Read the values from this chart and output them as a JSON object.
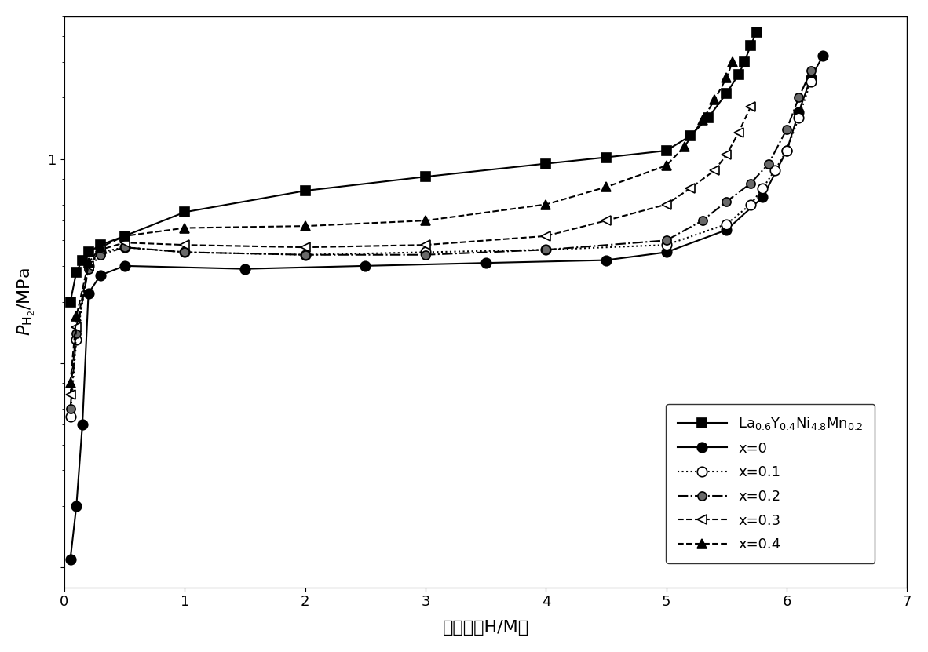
{
  "xlabel_cn": "原子比（H/M）",
  "ylabel": "$P_{\\mathrm{H_2}}$/MPa",
  "xlim": [
    0,
    7
  ],
  "ylim_log": [
    0.008,
    5
  ],
  "xticks": [
    0,
    1,
    2,
    3,
    4,
    5,
    6,
    7
  ],
  "series": [
    {
      "label_text": "La",
      "label": "La$_{0.6}$Y$_{0.4}$Ni$_{4.8}$Mn$_{0.2}$",
      "color": "black",
      "linestyle": "-",
      "marker": "s",
      "markersize": 8,
      "markerfacecolor": "black",
      "x": [
        0.05,
        0.1,
        0.15,
        0.2,
        0.3,
        0.5,
        1.0,
        2.0,
        3.0,
        4.0,
        4.5,
        5.0,
        5.2,
        5.35,
        5.5,
        5.6,
        5.65,
        5.7,
        5.75
      ],
      "y": [
        0.2,
        0.28,
        0.32,
        0.35,
        0.38,
        0.42,
        0.55,
        0.7,
        0.82,
        0.95,
        1.02,
        1.1,
        1.3,
        1.6,
        2.1,
        2.6,
        3.0,
        3.6,
        4.2
      ]
    },
    {
      "label": "x=0",
      "color": "black",
      "linestyle": "-",
      "marker": "o",
      "markersize": 9,
      "markerfacecolor": "black",
      "x": [
        0.05,
        0.1,
        0.15,
        0.2,
        0.3,
        0.5,
        1.5,
        2.5,
        3.5,
        4.5,
        5.0,
        5.5,
        5.8,
        6.0,
        6.1,
        6.2,
        6.3
      ],
      "y": [
        0.011,
        0.02,
        0.05,
        0.22,
        0.27,
        0.3,
        0.29,
        0.3,
        0.31,
        0.32,
        0.35,
        0.45,
        0.65,
        1.1,
        1.7,
        2.5,
        3.2
      ]
    },
    {
      "label": "x=0.1",
      "color": "black",
      "linestyle": ":",
      "marker": "o",
      "markersize": 9,
      "markerfacecolor": "white",
      "x": [
        0.05,
        0.1,
        0.2,
        0.3,
        0.5,
        1.0,
        2.0,
        3.0,
        4.0,
        5.0,
        5.5,
        5.7,
        5.8,
        5.9,
        6.0,
        6.1,
        6.2
      ],
      "y": [
        0.055,
        0.13,
        0.3,
        0.35,
        0.37,
        0.35,
        0.34,
        0.35,
        0.36,
        0.38,
        0.48,
        0.6,
        0.72,
        0.88,
        1.1,
        1.6,
        2.4
      ]
    },
    {
      "label": "x=0.2",
      "color": "black",
      "linestyle": "-.",
      "marker": "o",
      "markersize": 8,
      "markerfacecolor": "dimgray",
      "x": [
        0.05,
        0.1,
        0.2,
        0.3,
        0.5,
        1.0,
        2.0,
        3.0,
        4.0,
        5.0,
        5.3,
        5.5,
        5.7,
        5.85,
        6.0,
        6.1,
        6.2
      ],
      "y": [
        0.06,
        0.14,
        0.29,
        0.34,
        0.37,
        0.35,
        0.34,
        0.34,
        0.36,
        0.4,
        0.5,
        0.62,
        0.76,
        0.95,
        1.4,
        2.0,
        2.7
      ]
    },
    {
      "label": "x=0.3",
      "color": "black",
      "linestyle": "--",
      "marker": "<",
      "markersize": 8,
      "markerfacecolor": "white",
      "x": [
        0.05,
        0.1,
        0.2,
        0.3,
        0.5,
        1.0,
        2.0,
        3.0,
        4.0,
        4.5,
        5.0,
        5.2,
        5.4,
        5.5,
        5.6,
        5.7
      ],
      "y": [
        0.07,
        0.15,
        0.3,
        0.36,
        0.39,
        0.38,
        0.37,
        0.38,
        0.42,
        0.5,
        0.6,
        0.72,
        0.88,
        1.05,
        1.35,
        1.8
      ]
    },
    {
      "label": "x=0.4",
      "color": "black",
      "linestyle": "--",
      "marker": "^",
      "markersize": 8,
      "markerfacecolor": "black",
      "x": [
        0.05,
        0.1,
        0.2,
        0.3,
        0.5,
        1.0,
        2.0,
        3.0,
        4.0,
        4.5,
        5.0,
        5.15,
        5.3,
        5.4,
        5.5,
        5.55
      ],
      "y": [
        0.08,
        0.17,
        0.31,
        0.37,
        0.42,
        0.46,
        0.47,
        0.5,
        0.6,
        0.73,
        0.93,
        1.15,
        1.55,
        1.95,
        2.5,
        3.0
      ]
    }
  ]
}
